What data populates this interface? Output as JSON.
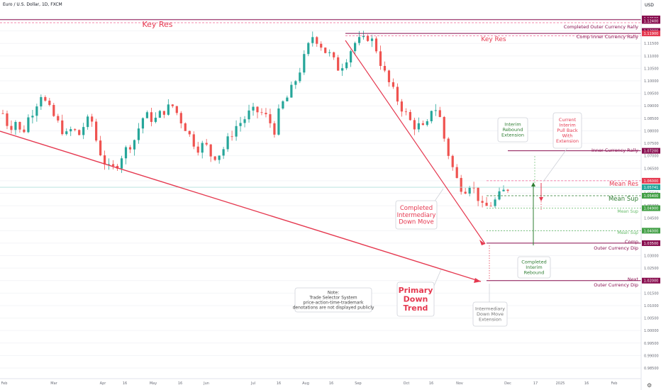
{
  "header": {
    "symbol": "Euro / U.S. Dollar, 1D, FXCM",
    "currency": "USD",
    "settings_icon": "gear-icon"
  },
  "colors": {
    "up": "#26a69a",
    "down": "#ef5350",
    "res": "#b71c4a",
    "sup": "#2e7d32",
    "arrow": "#e53950",
    "purple": "#880e4f",
    "pink": "#f06292",
    "grey": "#9e9e9e"
  },
  "axis": {
    "y_ticks": [
      "1.12500",
      "1.12000",
      "1.11500",
      "1.11000",
      "1.10500",
      "1.10000",
      "1.09500",
      "1.09000",
      "1.08500",
      "1.08000",
      "1.07500",
      "1.07000",
      "1.06500",
      "1.06000",
      "1.05500",
      "1.05000",
      "1.04500",
      "1.04000",
      "1.03500",
      "1.03000",
      "1.02500",
      "1.02000",
      "1.01500",
      "1.01000",
      "1.00500",
      "1.00000",
      "0.99500",
      "0.99000",
      "0.98500"
    ],
    "x_ticks": [
      "Feb",
      "Mar",
      "Apr",
      "16",
      "May",
      "16",
      "Jun",
      "Jul",
      "16",
      "Aug",
      "16",
      "Sep",
      "Oct",
      "16",
      "Nov",
      "Dec",
      "17",
      "2025",
      "16",
      "Feb"
    ]
  },
  "badges": [
    {
      "id": "b1",
      "text": "1.12500",
      "kind": "res"
    },
    {
      "id": "b2",
      "text": "1.12400",
      "kind": "res"
    },
    {
      "id": "b3",
      "text": "1.12000",
      "kind": "res"
    },
    {
      "id": "b4",
      "text": "1.11900",
      "kind": "resred"
    },
    {
      "id": "b5",
      "text": "1.07200",
      "kind": "res"
    },
    {
      "id": "b6",
      "text": "1.06000",
      "kind": "resred"
    },
    {
      "id": "b7",
      "text": "1.05741",
      "kind": "teal"
    },
    {
      "id": "b8",
      "text": "1.05400",
      "kind": "sup"
    },
    {
      "id": "b9",
      "text": "1.04900",
      "kind": "sup"
    },
    {
      "id": "b10",
      "text": "1.04000",
      "kind": "sup"
    },
    {
      "id": "b11",
      "text": "1.03500",
      "kind": "res"
    },
    {
      "id": "b12",
      "text": "1.02000",
      "kind": "res"
    }
  ],
  "labels": {
    "key_res_1": "Key Res",
    "key_res_2": "Key Res",
    "completed_outer_rally": "Completed Outer Currency Rally",
    "comp_inner_rally": "Comp Inner Currency Rally",
    "inner_rally": "Inner Currency Rally",
    "mean_res": "Mean Res",
    "mean_sup": "Mean Sup",
    "mean_sup_2": "Mean Sup",
    "mean_sup_3": "Mean Sup",
    "comp_dip_1": "Comp",
    "comp_dip_2": "Outer Currency Dip",
    "next_dip_1": "Next",
    "next_dip_2": "Outer Currency Dip"
  },
  "callouts": {
    "completed_intermediary": [
      "Completed",
      "Intermediary",
      "Down Move"
    ],
    "primary": [
      "Primary",
      "Down",
      "Trend"
    ],
    "interim_rebound_ext": [
      "Interim",
      "Rebound",
      "Extension"
    ],
    "current_pullback": [
      "Current",
      "Interim",
      "Pull Back",
      "With",
      "Extension"
    ],
    "completed_interim": [
      "Completed",
      "Interim",
      "Rebound"
    ],
    "intermediary_ext": [
      "Intermediary",
      "Down Move",
      "Extension"
    ],
    "note": [
      "Note:",
      "Trade Selector System",
      "price-action-time-trademark",
      "denotations are not displayed publicly"
    ]
  },
  "chart_data": {
    "type": "candlestick",
    "title": "Euro / U.S. Dollar, 1D, FXCM",
    "ylim": [
      0.983,
      1.128
    ],
    "x": [
      "Feb",
      "Mar",
      "Apr",
      "16",
      "May",
      "16",
      "Jun",
      "Jul",
      "16",
      "Aug",
      "16",
      "Sep",
      "Oct",
      "16",
      "Nov",
      "Dec",
      "17",
      "2025",
      "16",
      "Feb"
    ],
    "last_price": 1.05741,
    "close_path": [
      1.087,
      1.081,
      1.084,
      1.078,
      1.085,
      1.089,
      1.095,
      1.09,
      1.086,
      1.082,
      1.078,
      1.081,
      1.078,
      1.083,
      1.085,
      1.074,
      1.068,
      1.064,
      1.066,
      1.071,
      1.074,
      1.077,
      1.085,
      1.086,
      1.084,
      1.087,
      1.089,
      1.09,
      1.085,
      1.081,
      1.076,
      1.073,
      1.075,
      1.07,
      1.07,
      1.073,
      1.078,
      1.082,
      1.084,
      1.087,
      1.088,
      1.087,
      1.085,
      1.08,
      1.09,
      1.093,
      1.098,
      1.104,
      1.111,
      1.118,
      1.116,
      1.112,
      1.11,
      1.105,
      1.107,
      1.112,
      1.116,
      1.116,
      1.118,
      1.114,
      1.106,
      1.1,
      1.095,
      1.09,
      1.086,
      1.082,
      1.082,
      1.08,
      1.09,
      1.088,
      1.076,
      1.067,
      1.06,
      1.056,
      1.059,
      1.055,
      1.049,
      1.05,
      1.052,
      1.055,
      1.057
    ],
    "levels": [
      {
        "name": "Completed Outer Currency Rally",
        "value": 1.124
      },
      {
        "name": "Comp Inner Currency Rally",
        "value": 1.119
      },
      {
        "name": "Inner Currency Rally",
        "value": 1.072
      },
      {
        "name": "Mean Res",
        "value": 1.06
      },
      {
        "name": "Mean Sup",
        "value": 1.054
      },
      {
        "name": "Mean Sup",
        "value": 1.049
      },
      {
        "name": "Mean Sup",
        "value": 1.04
      },
      {
        "name": "Comp Outer Currency Dip",
        "value": 1.035
      },
      {
        "name": "Next Outer Currency Dip",
        "value": 1.02
      }
    ]
  }
}
